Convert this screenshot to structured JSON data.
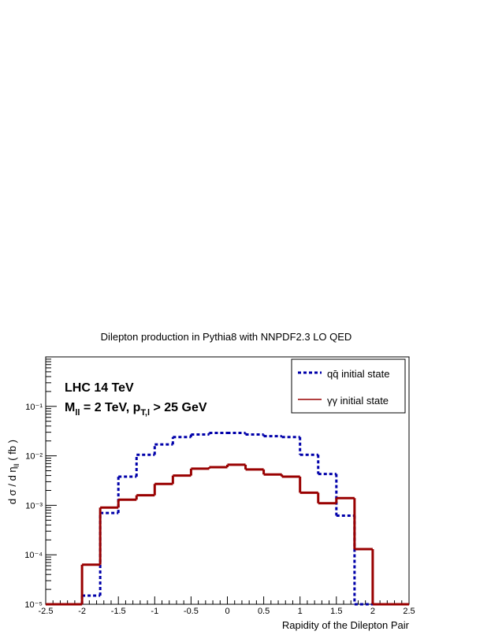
{
  "chart_data": {
    "type": "histogram",
    "title": "Dilepton production in Pythia8 with NNPDF2.3 LO QED",
    "x_label": "Rapidity of the Dilepton Pair",
    "y_label": [
      "d σ / d η",
      "ll",
      " ( fb )"
    ],
    "annotations": [
      [
        "LHC 14 TeV"
      ],
      [
        "M",
        "ll",
        " = 2 TeV, p",
        "T,l",
        " > 25 GeV"
      ]
    ],
    "log_y": true,
    "bins": [
      -2.5,
      -2.25,
      -2,
      -1.75,
      -1.5,
      -1.25,
      -1,
      -0.75,
      -0.5,
      -0.25,
      0,
      0.25,
      0.5,
      0.75,
      1,
      1.25,
      1.5,
      1.75,
      2,
      2.25,
      2.5
    ],
    "series": [
      {
        "name": "qq̄ initial state",
        "color": "#0000aa",
        "dashed": true,
        "values": [
          0,
          0,
          1.5e-05,
          0.0007,
          0.0038,
          0.0105,
          0.017,
          0.024,
          0.027,
          0.029,
          0.029,
          0.027,
          0.025,
          0.024,
          0.0105,
          0.0043,
          0.00062,
          0,
          0,
          0
        ]
      },
      {
        "name": "γγ initial state",
        "color": "#990000",
        "dashed": false,
        "values": [
          0,
          0,
          6.3e-05,
          0.0009,
          0.0013,
          0.0016,
          0.0027,
          0.004,
          0.0055,
          0.0059,
          0.0066,
          0.0053,
          0.0042,
          0.0038,
          0.0018,
          0.0011,
          0.0014,
          0.00013,
          0,
          0
        ]
      }
    ],
    "xlim": [
      -2.5,
      2.5
    ],
    "xticks": [
      -2.5,
      -2,
      -1.5,
      -1,
      -0.5,
      0,
      0.5,
      1,
      1.5,
      2,
      2.5
    ],
    "ylim": [
      1e-05,
      1
    ],
    "yticks": [
      {
        "value": 1e-05,
        "label": "10⁻⁵"
      },
      {
        "value": 0.0001,
        "label": "10⁻⁴"
      },
      {
        "value": 0.001,
        "label": "10⁻³"
      },
      {
        "value": 0.01,
        "label": "10⁻²"
      },
      {
        "value": 0.1,
        "label": "10⁻¹"
      }
    ],
    "legend": "top-right"
  }
}
